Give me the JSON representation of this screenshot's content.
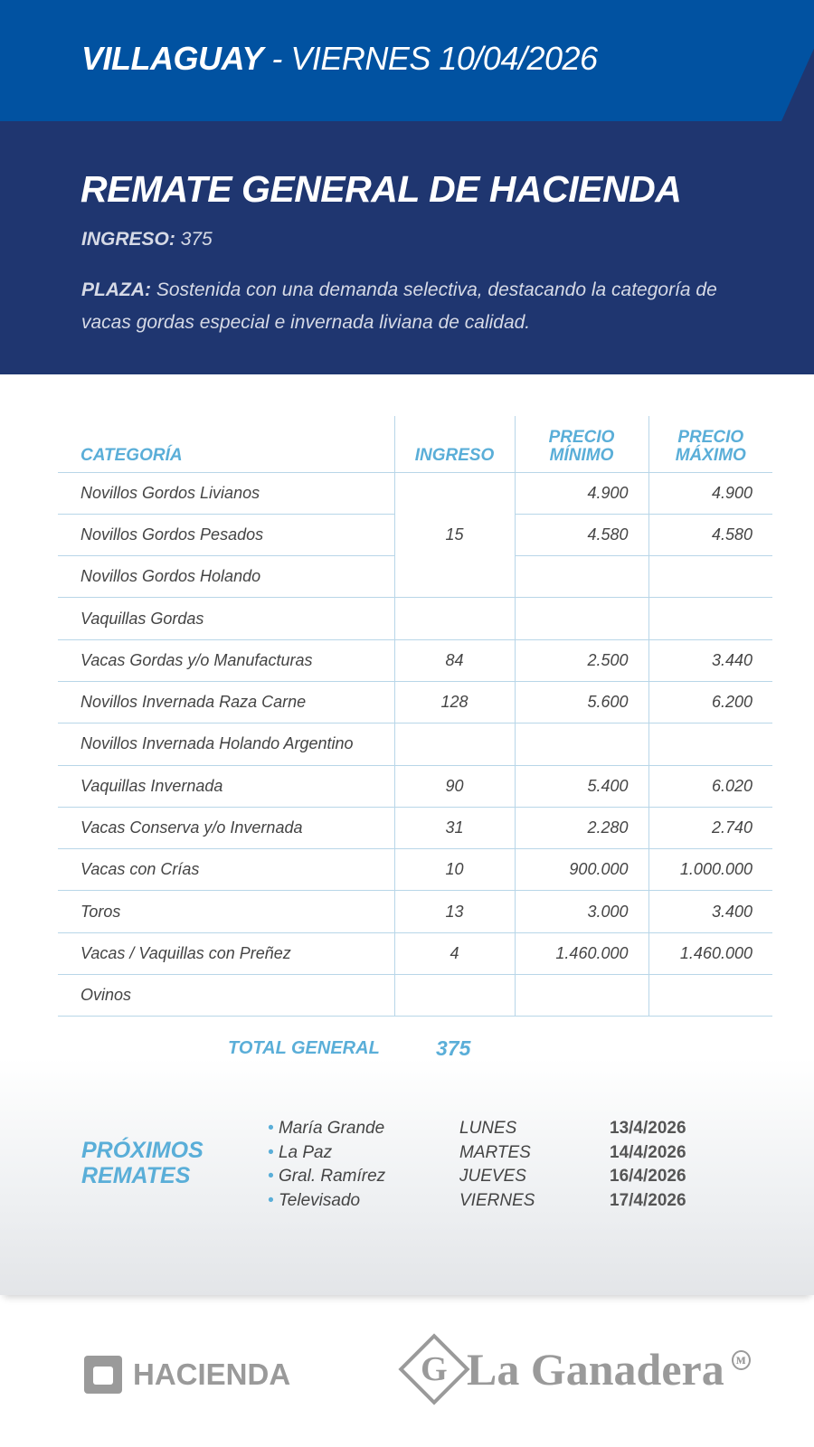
{
  "header": {
    "city": "VILLAGUAY",
    "separator": " - ",
    "date": "VIERNES 10/04/2026"
  },
  "title": "REMATE GENERAL DE HACIENDA",
  "ingreso": {
    "label": "INGRESO:",
    "value": "375"
  },
  "plaza": {
    "label": "PLAZA:",
    "text": "Sostenida con una demanda selectiva, destacando la categoría de vacas gordas especial e invernada liviana de calidad."
  },
  "table": {
    "headers": [
      "CATEGORÍA",
      "INGRESO",
      "PRECIO MÍNIMO",
      "PRECIO MÁXIMO"
    ],
    "rows": [
      {
        "cat": "Novillos Gordos Livianos",
        "min": "4.900",
        "max": "4.900"
      },
      {
        "cat": "Novillos Gordos Pesados",
        "min": "4.580",
        "max": "4.580"
      },
      {
        "cat": "Novillos Gordos Holando",
        "min": "",
        "max": ""
      },
      {
        "cat": "Vaquillas Gordas",
        "ing": "",
        "min": "",
        "max": ""
      },
      {
        "cat": "Vacas Gordas y/o Manufacturas",
        "ing": "84",
        "min": "2.500",
        "max": "3.440"
      },
      {
        "cat": "Novillos Invernada Raza Carne",
        "ing": "128",
        "min": "5.600",
        "max": "6.200"
      },
      {
        "cat": "Novillos Invernada Holando Argentino",
        "ing": "",
        "min": "",
        "max": ""
      },
      {
        "cat": "Vaquillas Invernada",
        "ing": "90",
        "min": "5.400",
        "max": "6.020"
      },
      {
        "cat": "Vacas Conserva y/o Invernada",
        "ing": "31",
        "min": "2.280",
        "max": "2.740"
      },
      {
        "cat": "Vacas con Crías",
        "ing": "10",
        "min": "900.000",
        "max": "1.000.000"
      },
      {
        "cat": "Toros",
        "ing": "13",
        "min": "3.000",
        "max": "3.400"
      },
      {
        "cat": "Vacas / Vaquillas con Preñez",
        "ing": "4",
        "min": "1.460.000",
        "max": "1.460.000"
      },
      {
        "cat": "Ovinos",
        "ing": "",
        "min": "",
        "max": ""
      }
    ],
    "novillos_gordos_ingreso": "15"
  },
  "total": {
    "label": "TOTAL GENERAL",
    "value": "375"
  },
  "proximos": {
    "title_1": "PRÓXIMOS",
    "title_2": "REMATES",
    "items": [
      {
        "place": "María Grande",
        "day": "LUNES",
        "date": "13/4/2026"
      },
      {
        "place": "La Paz",
        "day": "MARTES",
        "date": "14/4/2026"
      },
      {
        "place": "Gral. Ramírez",
        "day": "JUEVES",
        "date": "16/4/2026"
      },
      {
        "place": "Televisado",
        "day": "VIERNES",
        "date": "17/4/2026"
      }
    ]
  },
  "logos": {
    "hacienda": "HACIENDA",
    "ganadera": "La Ganadera",
    "ganadera_mark": "G"
  },
  "colors": {
    "top_band": "#0152a1",
    "navy": "#1f3670",
    "accent": "#5aaed8"
  }
}
